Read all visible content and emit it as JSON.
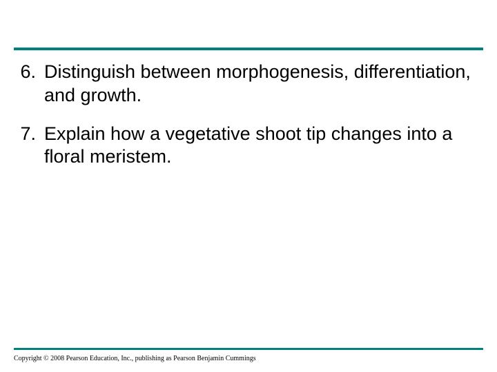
{
  "colors": {
    "rule": "#008080",
    "background": "#ffffff",
    "text": "#000000"
  },
  "typography": {
    "body_fontsize_pt": 20,
    "body_font": "Arial",
    "copyright_fontsize_pt": 7,
    "copyright_font": "Times New Roman"
  },
  "items": [
    {
      "number": "6.",
      "text": "Distinguish between morphogenesis, differentiation, and growth."
    },
    {
      "number": "7.",
      "text": "Explain how a vegetative shoot tip changes into a floral meristem."
    }
  ],
  "copyright": "Copyright © 2008 Pearson Education, Inc., publishing as Pearson Benjamin Cummings"
}
